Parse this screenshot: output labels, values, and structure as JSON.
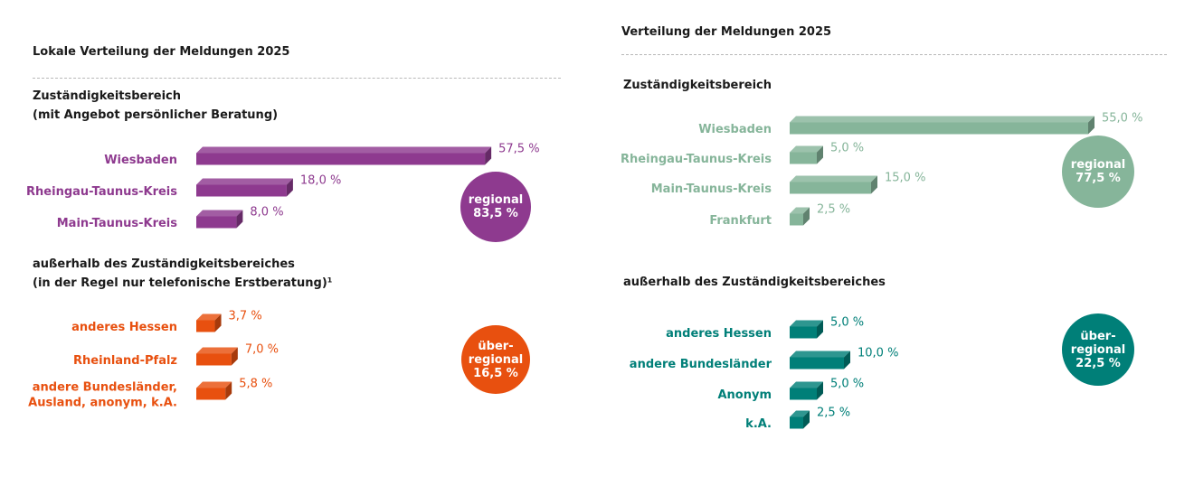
{
  "colors": {
    "purple": "#8E3A8F",
    "orange": "#E8500F",
    "light_green": "#86B59A",
    "teal": "#007F78"
  },
  "chart_data": [
    {
      "type": "bar",
      "orientation": "horizontal",
      "style": "3d",
      "title": "Lokale Verteilung der Meldungen 2025",
      "groups": [
        {
          "id": "regional",
          "heading": [
            "Zuständigkeitsbereich",
            "(mit Angebot persönlicher Beratung)"
          ],
          "color": "#8E3A8F",
          "categories": [
            [
              "Wiesbaden"
            ],
            [
              "Rheingau-Taunus-Kreis"
            ],
            [
              "Main-Taunus-Kreis"
            ]
          ],
          "values": [
            57.5,
            18.0,
            8.0
          ],
          "value_labels": [
            "57,5 %",
            "18,0 %",
            "8,0 %"
          ],
          "total": {
            "lines": [
              "regional",
              "83,5 %"
            ],
            "value": 83.5
          }
        },
        {
          "id": "ueberregional",
          "heading": [
            "außerhalb des Zuständigkeitsbereiches",
            "(in der Regel nur telefonische Erstberatung)¹"
          ],
          "color": "#E8500F",
          "categories": [
            [
              "anderes Hessen"
            ],
            [
              "Rheinland-Pfalz"
            ],
            [
              "andere Bundesländer,",
              "Ausland, anonym, k.A."
            ]
          ],
          "values": [
            3.7,
            7.0,
            5.8
          ],
          "value_labels": [
            "3,7 %",
            "7,0 %",
            "5,8 %"
          ],
          "total": {
            "lines": [
              "über-",
              "regional",
              "16,5 %"
            ],
            "value": 16.5
          }
        }
      ]
    },
    {
      "type": "bar",
      "orientation": "horizontal",
      "style": "3d",
      "title": "Verteilung der Meldungen 2025",
      "groups": [
        {
          "id": "regional",
          "heading": [
            "Zuständigkeitsbereich"
          ],
          "color": "#86B59A",
          "categories": [
            [
              "Wiesbaden"
            ],
            [
              "Rheingau-Taunus-Kreis"
            ],
            [
              "Main-Taunus-Kreis"
            ],
            [
              "Frankfurt"
            ]
          ],
          "values": [
            55.0,
            5.0,
            15.0,
            2.5
          ],
          "value_labels": [
            "55,0 %",
            "5,0 %",
            "15,0 %",
            "2,5 %"
          ],
          "total": {
            "lines": [
              "regional",
              "77,5 %"
            ],
            "value": 77.5
          }
        },
        {
          "id": "ueberregional",
          "heading": [
            "außerhalb des Zuständigkeitsbereiches"
          ],
          "color": "#007F78",
          "categories": [
            [
              "anderes Hessen"
            ],
            [
              "andere Bundesländer"
            ],
            [
              "Anonym"
            ],
            [
              "k.A."
            ]
          ],
          "values": [
            5.0,
            10.0,
            5.0,
            2.5
          ],
          "value_labels": [
            "5,0 %",
            "10,0 %",
            "5,0 %",
            "2,5 %"
          ],
          "total": {
            "lines": [
              "über-",
              "regional",
              "22,5 %"
            ],
            "value": 22.5
          }
        }
      ]
    }
  ]
}
